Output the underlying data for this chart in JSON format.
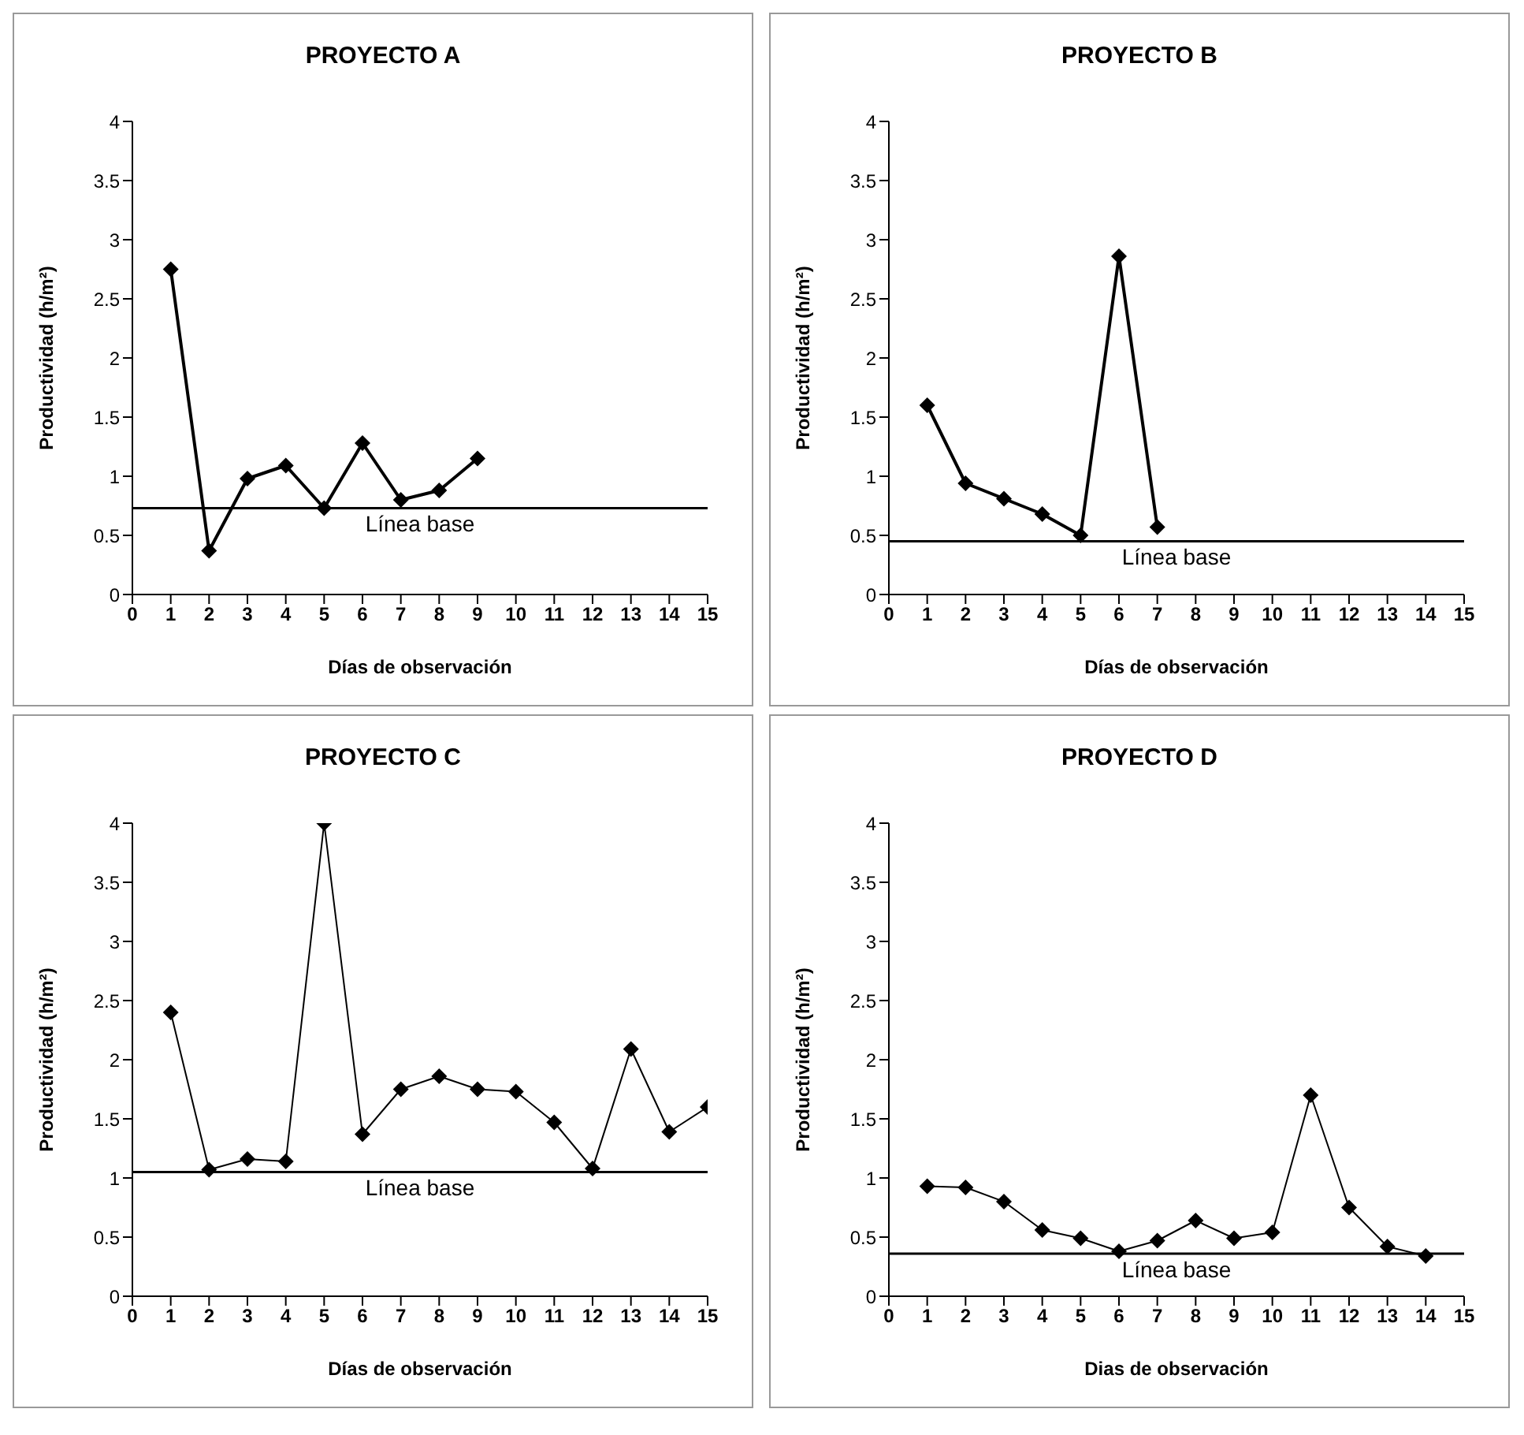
{
  "chart_data": [
    {
      "type": "line",
      "title": "PROYECTO A",
      "xlabel": "Días de observación",
      "ylabel": "Productividad (h/m²)",
      "x": [
        1,
        2,
        3,
        4,
        5,
        6,
        7,
        8,
        9
      ],
      "xlim": [
        0,
        15
      ],
      "xticks": [
        0,
        1,
        2,
        3,
        4,
        5,
        6,
        7,
        8,
        9,
        10,
        11,
        12,
        13,
        14,
        15
      ],
      "ylim": [
        0,
        4
      ],
      "yticks": [
        0,
        0.5,
        1,
        1.5,
        2,
        2.5,
        3,
        3.5,
        4
      ],
      "grid": false,
      "marker": "diamond",
      "line_style": "solid",
      "series": [
        {
          "color": "#000000",
          "values": [
            2.75,
            0.37,
            0.98,
            1.09,
            0.73,
            1.28,
            0.8,
            0.88,
            1.15
          ]
        }
      ],
      "ref_lines": [
        {
          "axis": "y",
          "value": 0.73,
          "label": "Línea base",
          "color": "#000000"
        }
      ]
    },
    {
      "type": "line",
      "title": "PROYECTO B",
      "xlabel": "Días de observación",
      "ylabel": "Productividad (h/m²)",
      "x": [
        1,
        2,
        3,
        4,
        5,
        6,
        7
      ],
      "xlim": [
        0,
        15
      ],
      "xticks": [
        0,
        1,
        2,
        3,
        4,
        5,
        6,
        7,
        8,
        9,
        10,
        11,
        12,
        13,
        14,
        15
      ],
      "ylim": [
        0,
        4
      ],
      "yticks": [
        0,
        0.5,
        1,
        1.5,
        2,
        2.5,
        3,
        3.5,
        4
      ],
      "grid": false,
      "marker": "diamond",
      "line_style": "solid",
      "series": [
        {
          "color": "#000000",
          "values": [
            1.6,
            0.94,
            0.81,
            0.68,
            0.5,
            2.86,
            0.57
          ]
        }
      ],
      "ref_lines": [
        {
          "axis": "y",
          "value": 0.45,
          "label": "Línea base",
          "color": "#000000"
        }
      ]
    },
    {
      "type": "line",
      "title": "PROYECTO C",
      "xlabel": "Días de observación",
      "ylabel": "Productividad (h/m²)",
      "x": [
        1,
        2,
        3,
        4,
        5,
        6,
        7,
        8,
        9,
        10,
        11,
        12,
        13,
        14,
        15
      ],
      "xlim": [
        0,
        15
      ],
      "xticks": [
        0,
        1,
        2,
        3,
        4,
        5,
        6,
        7,
        8,
        9,
        10,
        11,
        12,
        13,
        14,
        15
      ],
      "ylim": [
        0,
        4
      ],
      "yticks": [
        0,
        0.5,
        1,
        1.5,
        2,
        2.5,
        3,
        3.5,
        4
      ],
      "grid": false,
      "marker": "diamond",
      "line_style": "solid",
      "series": [
        {
          "color": "#000000",
          "values": [
            2.4,
            1.07,
            1.16,
            1.14,
            4,
            1.37,
            1.75,
            1.86,
            1.75,
            1.73,
            1.47,
            1.08,
            2.09,
            1.39,
            1.6
          ]
        }
      ],
      "ref_lines": [
        {
          "axis": "y",
          "value": 1.05,
          "label": "Línea base",
          "color": "#000000"
        }
      ]
    },
    {
      "type": "line",
      "title": "PROYECTO D",
      "xlabel": "Dias de observación",
      "ylabel": "Productividad (h/m²)",
      "x": [
        1,
        2,
        3,
        4,
        5,
        6,
        7,
        8,
        9,
        10,
        11,
        12,
        13,
        14
      ],
      "xlim": [
        0,
        15
      ],
      "xticks": [
        0,
        1,
        2,
        3,
        4,
        5,
        6,
        7,
        8,
        9,
        10,
        11,
        12,
        13,
        14,
        15
      ],
      "ylim": [
        0,
        4
      ],
      "yticks": [
        0,
        0.5,
        1,
        1.5,
        2,
        2.5,
        3,
        3.5,
        4
      ],
      "grid": false,
      "marker": "diamond",
      "line_style": "solid",
      "series": [
        {
          "color": "#000000",
          "values": [
            0.93,
            0.92,
            0.8,
            0.56,
            0.49,
            0.38,
            0.47,
            0.64,
            0.49,
            0.54,
            1.7,
            0.75,
            0.42,
            0.34
          ]
        }
      ],
      "ref_lines": [
        {
          "axis": "y",
          "value": 0.36,
          "label": "Línea base",
          "color": "#000000"
        }
      ]
    }
  ]
}
